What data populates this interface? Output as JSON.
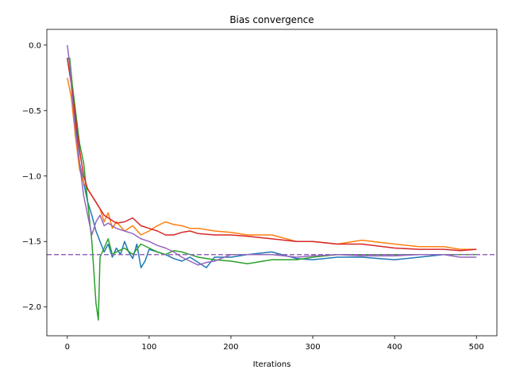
{
  "chart_data": {
    "type": "line",
    "title": "Bias convergence",
    "xlabel": "Iterations",
    "ylabel": "",
    "xlim": [
      -25,
      525
    ],
    "ylim": [
      -2.22,
      0.12
    ],
    "xticks": [
      0,
      100,
      200,
      300,
      400,
      500
    ],
    "yticks": [
      0.0,
      -0.5,
      -1.0,
      -1.5,
      -2.0
    ],
    "ytick_labels": [
      "0.0",
      "−0.5",
      "−1.0",
      "−1.5",
      "−2.0"
    ],
    "grid": false,
    "reference_line": {
      "y": -1.6,
      "style": "dashed",
      "color": "#9467bd"
    },
    "series": [
      {
        "color": "#1f77b4",
        "x": [
          0,
          5,
          10,
          15,
          20,
          25,
          30,
          35,
          40,
          45,
          50,
          55,
          60,
          65,
          70,
          75,
          80,
          85,
          90,
          95,
          100,
          110,
          120,
          130,
          140,
          150,
          160,
          170,
          180,
          200,
          220,
          250,
          280,
          300,
          330,
          360,
          400,
          430,
          460,
          480,
          500
        ],
        "y": [
          -0.1,
          -0.3,
          -0.6,
          -0.9,
          -1.05,
          -1.2,
          -1.3,
          -1.42,
          -1.5,
          -1.58,
          -1.52,
          -1.62,
          -1.55,
          -1.6,
          -1.5,
          -1.58,
          -1.63,
          -1.52,
          -1.7,
          -1.65,
          -1.56,
          -1.58,
          -1.6,
          -1.63,
          -1.65,
          -1.62,
          -1.66,
          -1.7,
          -1.62,
          -1.62,
          -1.6,
          -1.58,
          -1.63,
          -1.64,
          -1.62,
          -1.62,
          -1.64,
          -1.62,
          -1.6,
          -1.6,
          -1.6
        ]
      },
      {
        "color": "#ff7f0e",
        "x": [
          0,
          5,
          10,
          15,
          20,
          25,
          30,
          35,
          40,
          45,
          50,
          55,
          60,
          70,
          80,
          90,
          100,
          110,
          120,
          130,
          140,
          150,
          160,
          180,
          200,
          220,
          250,
          280,
          300,
          330,
          360,
          400,
          430,
          460,
          480,
          500
        ],
        "y": [
          -0.25,
          -0.4,
          -0.7,
          -0.95,
          -1.05,
          -1.1,
          -1.15,
          -1.2,
          -1.25,
          -1.35,
          -1.28,
          -1.4,
          -1.35,
          -1.42,
          -1.38,
          -1.45,
          -1.42,
          -1.38,
          -1.35,
          -1.37,
          -1.38,
          -1.4,
          -1.4,
          -1.42,
          -1.43,
          -1.45,
          -1.45,
          -1.5,
          -1.5,
          -1.52,
          -1.49,
          -1.52,
          -1.54,
          -1.54,
          -1.56,
          -1.56
        ]
      },
      {
        "color": "#2ca02c",
        "x": [
          0,
          3,
          6,
          10,
          15,
          20,
          25,
          30,
          35,
          38,
          40,
          45,
          50,
          55,
          60,
          70,
          80,
          90,
          100,
          110,
          120,
          130,
          140,
          150,
          160,
          180,
          200,
          220,
          250,
          280,
          300,
          330,
          360,
          400,
          430,
          460,
          480,
          500
        ],
        "y": [
          -0.1,
          -0.1,
          -0.3,
          -0.5,
          -0.75,
          -0.9,
          -1.2,
          -1.5,
          -1.97,
          -2.1,
          -1.62,
          -1.55,
          -1.48,
          -1.6,
          -1.58,
          -1.55,
          -1.6,
          -1.52,
          -1.55,
          -1.58,
          -1.6,
          -1.57,
          -1.58,
          -1.6,
          -1.62,
          -1.64,
          -1.65,
          -1.67,
          -1.64,
          -1.64,
          -1.62,
          -1.6,
          -1.6,
          -1.6,
          -1.6,
          -1.6,
          -1.6,
          -1.6
        ]
      },
      {
        "color": "#d62728",
        "x": [
          0,
          5,
          10,
          15,
          20,
          25,
          30,
          35,
          40,
          45,
          50,
          60,
          70,
          80,
          90,
          100,
          110,
          120,
          130,
          140,
          150,
          160,
          180,
          200,
          220,
          250,
          280,
          300,
          330,
          360,
          400,
          430,
          460,
          480,
          500
        ],
        "y": [
          -0.1,
          -0.3,
          -0.55,
          -0.8,
          -1.0,
          -1.1,
          -1.15,
          -1.2,
          -1.25,
          -1.3,
          -1.32,
          -1.36,
          -1.35,
          -1.32,
          -1.38,
          -1.4,
          -1.42,
          -1.45,
          -1.45,
          -1.43,
          -1.42,
          -1.44,
          -1.45,
          -1.45,
          -1.46,
          -1.48,
          -1.5,
          -1.5,
          -1.52,
          -1.52,
          -1.55,
          -1.56,
          -1.56,
          -1.57,
          -1.56
        ]
      },
      {
        "color": "#9467bd",
        "x": [
          0,
          3,
          6,
          10,
          15,
          20,
          25,
          30,
          35,
          40,
          45,
          50,
          55,
          60,
          70,
          80,
          90,
          100,
          110,
          120,
          130,
          140,
          150,
          160,
          170,
          180,
          200,
          220,
          250,
          280,
          300,
          330,
          360,
          400,
          430,
          460,
          480,
          500
        ],
        "y": [
          0.0,
          -0.15,
          -0.4,
          -0.65,
          -0.9,
          -1.15,
          -1.3,
          -1.45,
          -1.35,
          -1.3,
          -1.38,
          -1.36,
          -1.38,
          -1.4,
          -1.42,
          -1.44,
          -1.48,
          -1.5,
          -1.53,
          -1.55,
          -1.58,
          -1.62,
          -1.65,
          -1.68,
          -1.66,
          -1.65,
          -1.6,
          -1.6,
          -1.6,
          -1.62,
          -1.61,
          -1.6,
          -1.61,
          -1.61,
          -1.6,
          -1.6,
          -1.62,
          -1.62
        ]
      }
    ]
  }
}
